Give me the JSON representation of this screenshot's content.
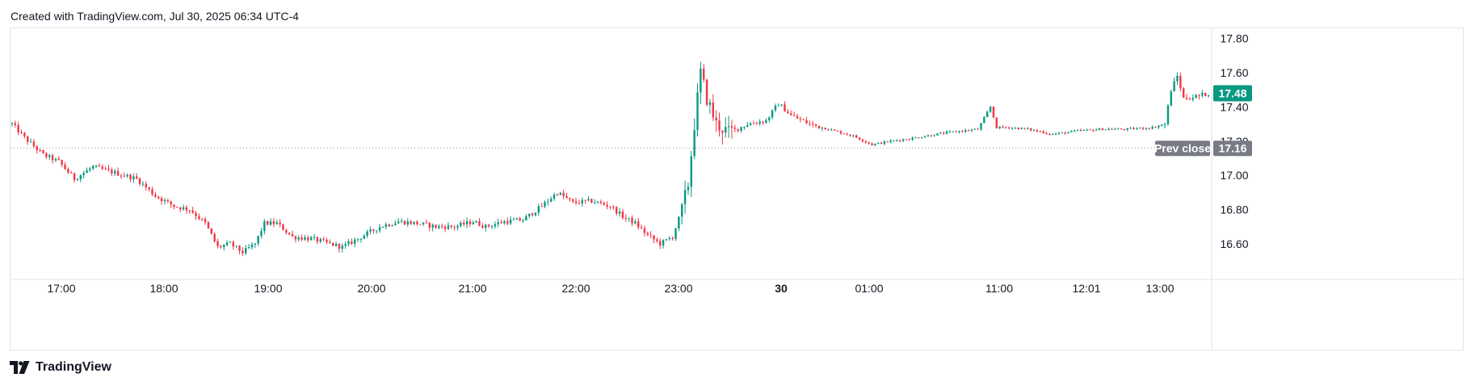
{
  "header": {
    "text": "Created with TradingView.com, Jul 30, 2025 06:34 UTC-4"
  },
  "footer": {
    "brand": "TradingView",
    "logo_icon": "tradingview-logo-icon"
  },
  "chart_data": {
    "type": "candlestick",
    "ylim": [
      16.42,
      17.86
    ],
    "y_ticks": [
      "17.80",
      "17.60",
      "17.40",
      "17.20",
      "17.00",
      "16.80",
      "16.60"
    ],
    "x_ticks": [
      "17:00",
      "18:00",
      "19:00",
      "20:00",
      "21:00",
      "22:00",
      "23:00",
      "30",
      "01:00",
      "11:00",
      "12:01",
      "13:00"
    ],
    "bold_x_tick": "30",
    "last_price": "17.48",
    "prev_close": {
      "label": "Prev close",
      "value": "17.16"
    },
    "colors": {
      "up": "#089981",
      "down": "#f23645",
      "prev_close_bg": "#787b86",
      "last_bg": "#089981",
      "grid": "#e0e3eb"
    },
    "price_path": [
      [
        0,
        17.3
      ],
      [
        4,
        17.22
      ],
      [
        10,
        17.12
      ],
      [
        15,
        17.08
      ],
      [
        20,
        16.98
      ],
      [
        26,
        17.05
      ],
      [
        32,
        17.02
      ],
      [
        40,
        16.98
      ],
      [
        46,
        16.88
      ],
      [
        52,
        16.82
      ],
      [
        57,
        16.8
      ],
      [
        62,
        16.72
      ],
      [
        66,
        16.58
      ],
      [
        70,
        16.6
      ],
      [
        74,
        16.55
      ],
      [
        78,
        16.6
      ],
      [
        81,
        16.72
      ],
      [
        85,
        16.72
      ],
      [
        90,
        16.64
      ],
      [
        96,
        16.63
      ],
      [
        102,
        16.6
      ],
      [
        106,
        16.58
      ],
      [
        112,
        16.64
      ],
      [
        118,
        16.7
      ],
      [
        124,
        16.73
      ],
      [
        130,
        16.72
      ],
      [
        136,
        16.7
      ],
      [
        142,
        16.7
      ],
      [
        148,
        16.73
      ],
      [
        152,
        16.7
      ],
      [
        158,
        16.73
      ],
      [
        164,
        16.74
      ],
      [
        170,
        16.82
      ],
      [
        175,
        16.9
      ],
      [
        180,
        16.84
      ],
      [
        186,
        16.85
      ],
      [
        192,
        16.82
      ],
      [
        196,
        16.76
      ],
      [
        200,
        16.72
      ],
      [
        204,
        16.65
      ],
      [
        208,
        16.6
      ],
      [
        212,
        16.64
      ],
      [
        215,
        16.8
      ],
      [
        217,
        16.95
      ],
      [
        219,
        17.3
      ],
      [
        221,
        17.6
      ],
      [
        223,
        17.45
      ],
      [
        226,
        17.3
      ],
      [
        230,
        17.25
      ],
      [
        236,
        17.3
      ],
      [
        242,
        17.32
      ],
      [
        246,
        17.42
      ],
      [
        250,
        17.35
      ],
      [
        256,
        17.3
      ],
      [
        262,
        17.27
      ],
      [
        270,
        17.23
      ],
      [
        276,
        17.18
      ],
      [
        282,
        17.2
      ],
      [
        290,
        17.22
      ],
      [
        300,
        17.25
      ],
      [
        310,
        17.27
      ],
      [
        314,
        17.4
      ],
      [
        316,
        17.28
      ],
      [
        320,
        17.28
      ],
      [
        326,
        17.27
      ],
      [
        334,
        17.24
      ],
      [
        342,
        17.26
      ],
      [
        350,
        17.27
      ],
      [
        358,
        17.27
      ],
      [
        366,
        17.28
      ],
      [
        370,
        17.3
      ],
      [
        372,
        17.5
      ],
      [
        374,
        17.58
      ],
      [
        376,
        17.45
      ],
      [
        380,
        17.46
      ],
      [
        384,
        17.48
      ]
    ]
  }
}
